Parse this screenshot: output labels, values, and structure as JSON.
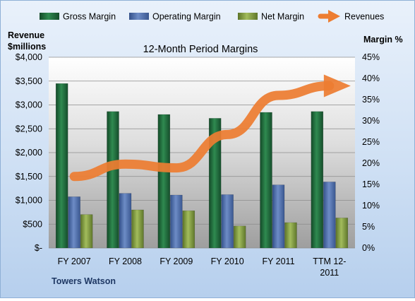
{
  "chart_data": {
    "type": "bar",
    "title": "12-Month Period Margins",
    "left_axis_title": [
      "Revenue",
      "$millions"
    ],
    "right_axis_title": "Margin %",
    "footer": "Towers Watson",
    "categories": [
      [
        "FY 2007"
      ],
      [
        "FY 2008"
      ],
      [
        "FY 2009"
      ],
      [
        "FY 2010"
      ],
      [
        "FY 2011"
      ],
      [
        "TTM 12-",
        "2011"
      ]
    ],
    "left_axis": {
      "min": 0,
      "max": 4000,
      "ticks": [
        0,
        500,
        1000,
        1500,
        2000,
        2500,
        3000,
        3500,
        4000
      ],
      "tick_labels": [
        "$-",
        "$500",
        "$1,000",
        "$1,500",
        "$2,000",
        "$2,500",
        "$3,000",
        "$3,500",
        "$4,000"
      ]
    },
    "right_axis": {
      "min": 0,
      "max": 45,
      "ticks": [
        0,
        5,
        10,
        15,
        20,
        25,
        30,
        35,
        40,
        45
      ],
      "tick_labels": [
        "0%",
        "5%",
        "10%",
        "15%",
        "20%",
        "25%",
        "30%",
        "35%",
        "40%",
        "45%"
      ]
    },
    "series": [
      {
        "name": "Gross Margin",
        "kind": "bar",
        "axis": "right",
        "color": "#1e6b3c",
        "values": [
          38.8,
          32.2,
          31.5,
          30.6,
          32.0,
          32.2
        ]
      },
      {
        "name": "Operating Margin",
        "kind": "bar",
        "axis": "right",
        "color": "#4f6fae",
        "values": [
          12.1,
          12.9,
          12.5,
          12.6,
          14.9,
          15.6
        ]
      },
      {
        "name": "Net Margin",
        "kind": "bar",
        "axis": "right",
        "color": "#7e9a3e",
        "values": [
          7.9,
          9.0,
          8.8,
          5.2,
          6.0,
          7.1
        ]
      },
      {
        "name": "Revenues",
        "kind": "line",
        "axis": "left",
        "color": "#ed7d31",
        "values": [
          1500,
          1760,
          1680,
          2380,
          3200,
          3400
        ]
      }
    ],
    "grid": true,
    "legend_position": "top"
  }
}
